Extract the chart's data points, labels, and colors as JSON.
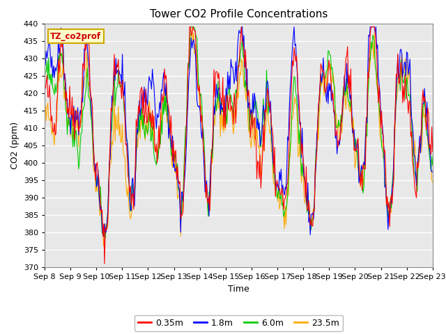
{
  "title": "Tower CO2 Profile Concentrations",
  "xlabel": "Time",
  "ylabel": "CO2 (ppm)",
  "ylim": [
    370,
    440
  ],
  "yticks": [
    370,
    375,
    380,
    385,
    390,
    395,
    400,
    405,
    410,
    415,
    420,
    425,
    430,
    435,
    440
  ],
  "xtick_labels": [
    "Sep 8",
    "Sep 9",
    "Sep 10",
    "Sep 11",
    "Sep 12",
    "Sep 13",
    "Sep 14",
    "Sep 15",
    "Sep 16",
    "Sep 17",
    "Sep 18",
    "Sep 19",
    "Sep 20",
    "Sep 21",
    "Sep 22",
    "Sep 23"
  ],
  "series": [
    {
      "label": "0.35m",
      "color": "#ff0000"
    },
    {
      "label": "1.8m",
      "color": "#0000ff"
    },
    {
      "label": "6.0m",
      "color": "#00cc00"
    },
    {
      "label": "23.5m",
      "color": "#ffaa00"
    }
  ],
  "legend_label": "TZ_co2prof",
  "legend_bg": "#ffffcc",
  "legend_edge": "#ccaa00",
  "bg_color": "#e8e8e8",
  "grid_color": "#ffffff",
  "n_points": 480,
  "base_co2": 400,
  "random_seed": 42,
  "title_fontsize": 11,
  "axis_label_fontsize": 9,
  "tick_fontsize": 8
}
